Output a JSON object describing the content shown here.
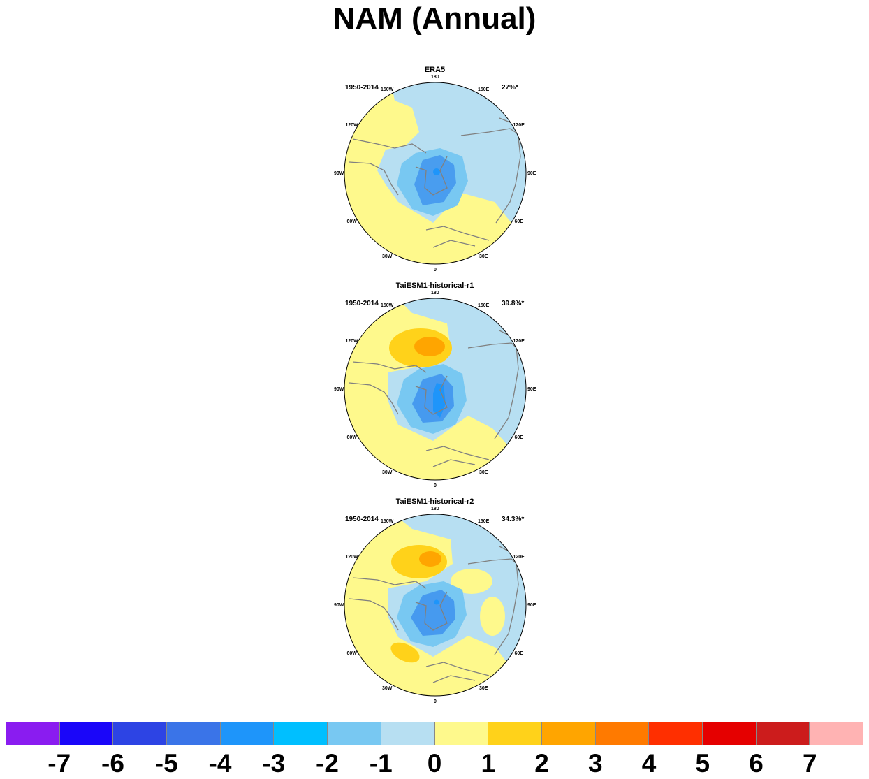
{
  "title": "NAM (Annual)",
  "panels": [
    {
      "name": "ERA5",
      "period": "1950-2014",
      "variance": "27%*"
    },
    {
      "name": "TaiESM1-historical-r1",
      "period": "1950-2014",
      "variance": "39.8%*"
    },
    {
      "name": "TaiESM1-historical-r2",
      "period": "1950-2014",
      "variance": "34.3%*"
    }
  ],
  "longitude_labels": [
    "180",
    "150E",
    "120E",
    "90E",
    "60E",
    "30E",
    "0",
    "30W",
    "60W",
    "90W",
    "120W",
    "150W"
  ],
  "colorbar": {
    "colors": [
      "#8a1cf0",
      "#1a06f9",
      "#2d44e4",
      "#3a74e8",
      "#1e95fa",
      "#00bfff",
      "#78c8f2",
      "#b7dff2",
      "#fef98c",
      "#ffd21a",
      "#ffa500",
      "#ff7a00",
      "#ff2f00",
      "#e50000",
      "#cc1c1c",
      "#ffb3b3"
    ],
    "labels": [
      "-7",
      "-6",
      "-5",
      "-4",
      "-3",
      "-2",
      "-1",
      "0",
      "1",
      "2",
      "3",
      "4",
      "5",
      "6",
      "7"
    ]
  },
  "map_colors": {
    "ocean_blue": "#b7dff2",
    "land_yellow": "#fef98c",
    "coast": "#808080"
  }
}
